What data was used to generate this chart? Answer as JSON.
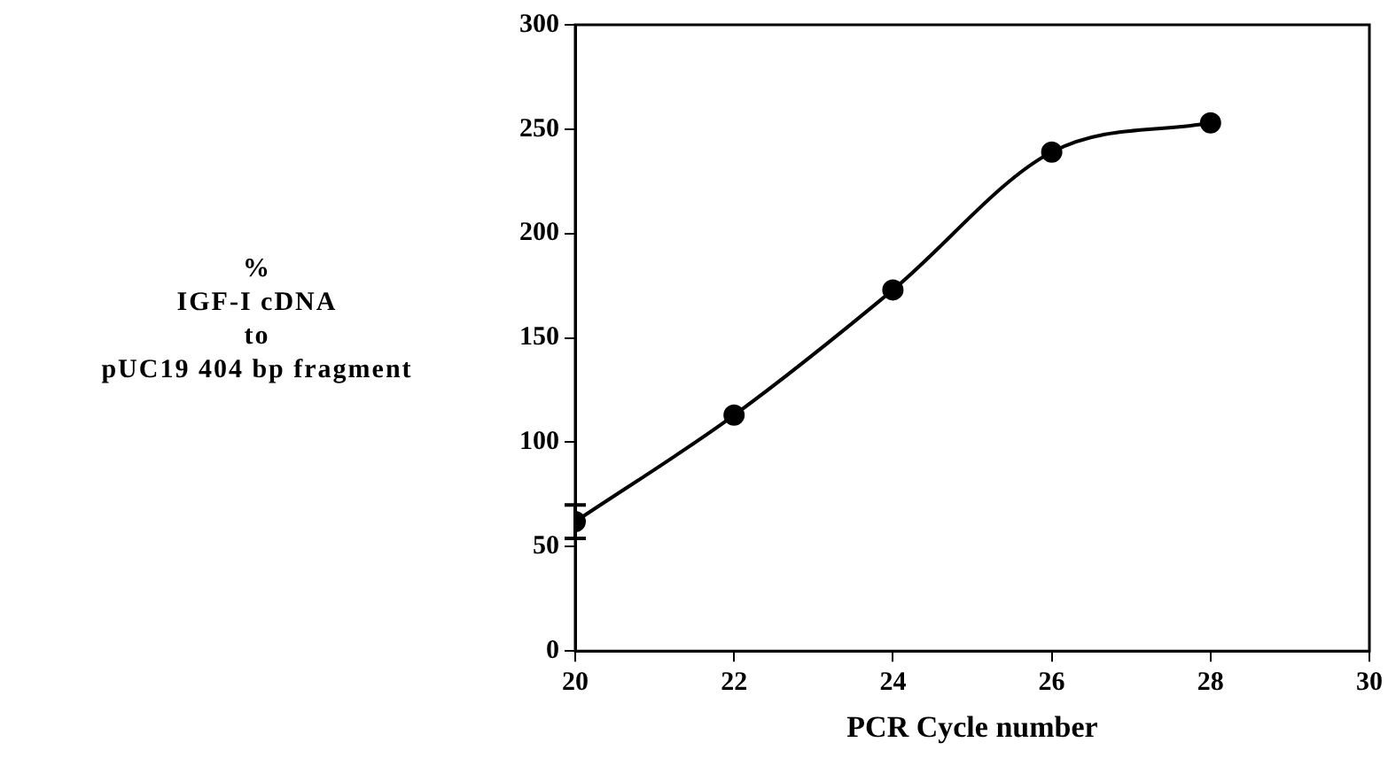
{
  "chart_data": {
    "type": "line",
    "xlabel": "PCR Cycle number",
    "ylabel": "%\nIGF-I cDNA\nto\npUC19 404 bp fragment",
    "x": [
      20,
      22,
      24,
      26,
      28
    ],
    "series": [
      {
        "color": "#000000",
        "values": [
          62,
          113,
          173,
          239,
          253
        ],
        "errors": [
          8,
          null,
          null,
          null,
          null
        ]
      }
    ],
    "xlim": [
      20,
      30
    ],
    "xticks": [
      20,
      22,
      24,
      26,
      28,
      30
    ],
    "ylim": [
      0,
      300
    ],
    "yticks": [
      0,
      50,
      100,
      150,
      200,
      250,
      300
    ],
    "grid": false,
    "legend": false,
    "marker": "circle",
    "line_style": "solid"
  }
}
